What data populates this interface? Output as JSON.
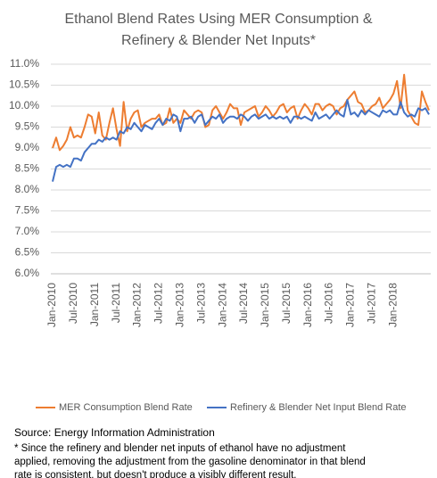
{
  "chart_data": {
    "type": "line",
    "title_lines": [
      "Ethanol Blend Rates Using MER Consumption &",
      "Refinery & Blender Net Inputs*"
    ],
    "source": "Source: Energy Information Administration",
    "footnote_lines": [
      "* Since the refinery and blender net inputs of ethanol have no adjustment",
      "applied, removing the adjustment from the gasoline denominator in that blend",
      "rate is consistent, but doesn't produce a visibly different result."
    ],
    "categories": [
      "Jan-2010",
      null,
      null,
      null,
      null,
      null,
      "Jul-2010",
      null,
      null,
      null,
      null,
      null,
      "Jan-2011",
      null,
      null,
      null,
      null,
      null,
      "Jul-2011",
      null,
      null,
      null,
      null,
      null,
      "Jan-2012",
      null,
      null,
      null,
      null,
      null,
      "Jul-2012",
      null,
      null,
      null,
      null,
      null,
      "Jan-2013",
      null,
      null,
      null,
      null,
      null,
      "Jul-2013",
      null,
      null,
      null,
      null,
      null,
      "Jan-2014",
      null,
      null,
      null,
      null,
      null,
      "Jul-2014",
      null,
      null,
      null,
      null,
      null,
      "Jan-2015",
      null,
      null,
      null,
      null,
      null,
      "Jul-2015",
      null,
      null,
      null,
      null,
      null,
      "Jan-2016",
      null,
      null,
      null,
      null,
      null,
      "Jul-2016",
      null,
      null,
      null,
      null,
      null,
      "Jan-2017",
      null,
      null,
      null,
      null,
      null,
      "Jul-2017",
      null,
      null,
      null,
      null,
      null,
      "Jan-2018",
      null,
      null,
      null,
      null,
      null,
      null,
      null,
      null,
      null,
      null
    ],
    "series": [
      {
        "name": "MER Consumption Blend Rate",
        "color": "#ed7d31",
        "values": [
          9.0,
          9.25,
          8.95,
          9.05,
          9.2,
          9.5,
          9.25,
          9.3,
          9.25,
          9.5,
          9.8,
          9.75,
          9.35,
          9.85,
          9.3,
          9.2,
          9.6,
          9.95,
          9.45,
          9.05,
          10.1,
          9.4,
          9.7,
          9.85,
          9.9,
          9.5,
          9.6,
          9.65,
          9.7,
          9.7,
          9.8,
          9.55,
          9.6,
          9.95,
          9.6,
          9.7,
          9.6,
          9.9,
          9.8,
          9.7,
          9.85,
          9.9,
          9.85,
          9.5,
          9.55,
          9.9,
          10.0,
          9.85,
          9.7,
          9.85,
          10.05,
          9.95,
          9.95,
          9.55,
          9.85,
          9.9,
          9.95,
          10.0,
          9.75,
          9.85,
          10.0,
          9.9,
          9.75,
          9.85,
          10.0,
          10.05,
          9.85,
          9.95,
          10.0,
          9.7,
          9.9,
          10.05,
          9.95,
          9.8,
          10.05,
          10.05,
          9.9,
          10.0,
          10.05,
          10.0,
          9.8,
          9.95,
          10.0,
          10.15,
          10.25,
          10.35,
          10.1,
          10.05,
          9.85,
          9.9,
          10.0,
          10.05,
          10.2,
          9.95,
          10.05,
          10.15,
          10.3,
          10.6,
          9.95,
          10.75,
          9.9,
          9.75,
          9.6,
          9.55,
          10.35,
          10.1,
          9.9
        ]
      },
      {
        "name": "Refinery & Blender Net Input Blend Rate",
        "color": "#4472c4",
        "values": [
          8.2,
          8.55,
          8.6,
          8.55,
          8.6,
          8.55,
          8.75,
          8.75,
          8.7,
          8.9,
          9.0,
          9.1,
          9.1,
          9.2,
          9.15,
          9.25,
          9.2,
          9.25,
          9.2,
          9.4,
          9.35,
          9.5,
          9.45,
          9.6,
          9.5,
          9.4,
          9.55,
          9.5,
          9.45,
          9.6,
          9.7,
          9.55,
          9.7,
          9.65,
          9.8,
          9.75,
          9.4,
          9.7,
          9.7,
          9.75,
          9.6,
          9.75,
          9.8,
          9.55,
          9.65,
          9.75,
          9.7,
          9.8,
          9.6,
          9.7,
          9.75,
          9.75,
          9.7,
          9.8,
          9.75,
          9.65,
          9.75,
          9.8,
          9.7,
          9.75,
          9.8,
          9.7,
          9.75,
          9.7,
          9.75,
          9.7,
          9.75,
          9.6,
          9.75,
          9.75,
          9.7,
          9.75,
          9.7,
          9.65,
          9.85,
          9.7,
          9.75,
          9.8,
          9.7,
          9.8,
          9.9,
          9.8,
          9.75,
          10.15,
          9.8,
          9.85,
          9.75,
          9.9,
          9.8,
          9.9,
          9.85,
          9.8,
          9.75,
          9.9,
          9.85,
          9.9,
          9.8,
          9.8,
          10.1,
          9.85,
          9.75,
          9.8,
          9.75,
          9.95,
          9.9,
          9.95,
          9.8
        ]
      }
    ],
    "ylim": [
      6.0,
      11.0
    ],
    "yticks": [
      {
        "value": 6.0,
        "label": "6.0%"
      },
      {
        "value": 6.5,
        "label": "6.5%"
      },
      {
        "value": 7.0,
        "label": "7.0%"
      },
      {
        "value": 7.5,
        "label": "7.5%"
      },
      {
        "value": 8.0,
        "label": "8.0%"
      },
      {
        "value": 8.5,
        "label": "8.5%"
      },
      {
        "value": 9.0,
        "label": "9.0%"
      },
      {
        "value": 9.5,
        "label": "9.5%"
      },
      {
        "value": 10.0,
        "label": "10.0%"
      },
      {
        "value": 10.5,
        "label": "10.5%"
      },
      {
        "value": 11.0,
        "label": "11.0%"
      }
    ],
    "grid": true,
    "legend": "bottom"
  }
}
